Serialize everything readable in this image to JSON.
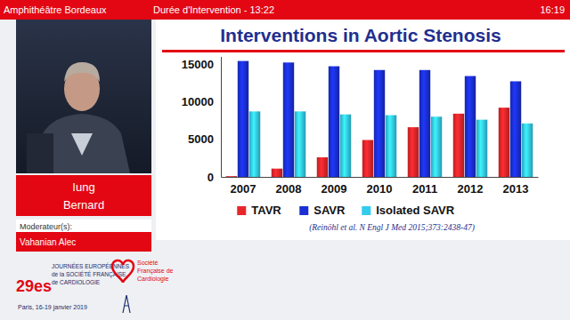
{
  "page": {
    "header": {
      "room": "Amphithéâtre Bordeaux",
      "duration": "Durée d'Intervention - 13:22",
      "clock": "16:19"
    },
    "speaker": {
      "first": "Iung",
      "last": "Bernard"
    },
    "moderator": {
      "label": "Moderateur(s):",
      "name": "Vahanian Alec"
    },
    "event": {
      "edition": "29es",
      "name_lines": [
        "JOURNÉES EUROPÉENNES",
        "de la SOCIÉTÉ FRANÇAISE",
        "de CARDIOLOGIE"
      ],
      "dates": "Paris, 16-19 janvier 2019",
      "society_lines": [
        "Société",
        "Française de",
        "Cardiologie"
      ]
    }
  },
  "chart_data": {
    "type": "bar",
    "title": "Interventions in Aortic Stenosis",
    "source": "(Reinöhl et al. N Engl J Med 2015;373:2438-47)",
    "categories": [
      "2007",
      "2008",
      "2009",
      "2010",
      "2011",
      "2012",
      "2013"
    ],
    "series": [
      {
        "name": "TAVR",
        "color": "#e8262a",
        "values": [
          100,
          1100,
          2600,
          4900,
          6600,
          8400,
          9200
        ]
      },
      {
        "name": "SAVR",
        "color": "#1a2fd4",
        "values": [
          15400,
          15200,
          14700,
          14200,
          14200,
          13400,
          12700
        ]
      },
      {
        "name": "Isolated SAVR",
        "color": "#33ccee",
        "values": [
          8700,
          8700,
          8300,
          8200,
          8000,
          7600,
          7100
        ]
      }
    ],
    "ylim": [
      0,
      16000
    ],
    "yticks": [
      0,
      5000,
      10000,
      15000
    ],
    "grid": false,
    "legend": "bottom"
  }
}
